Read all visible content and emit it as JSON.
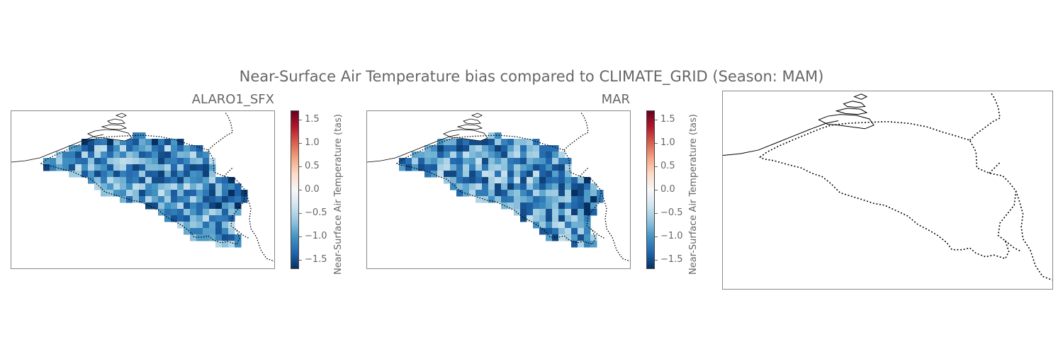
{
  "figure": {
    "title": "Near-Surface Air Temperature bias compared to CLIMATE_GRID (Season: MAM)"
  },
  "panels": [
    {
      "title": "ALARO1_SFX",
      "has_data": true,
      "seed": 7
    },
    {
      "title": "MAR",
      "has_data": true,
      "seed": 19
    },
    {
      "title": "",
      "has_data": false
    }
  ],
  "colorbar": {
    "label": "Near-Surface Air Temperature (tas)",
    "vmin": -1.7,
    "vmax": 1.7,
    "ticks": [
      "1.5",
      "1.0",
      "0.5",
      "0.0",
      "−0.5",
      "−1.0",
      "−1.5"
    ],
    "tick_values": [
      1.5,
      1.0,
      0.5,
      0.0,
      -0.5,
      -1.0,
      -1.5
    ],
    "colormap": [
      "#053061",
      "#2166ac",
      "#4393c3",
      "#92c5de",
      "#d1e5f0",
      "#f7f7f7",
      "#fddbc7",
      "#f4a582",
      "#d6604d",
      "#b2182b",
      "#67001f"
    ]
  },
  "chart_data": {
    "type": "heatmap",
    "title": "Near-Surface Air Temperature bias compared to CLIMATE_GRID (Season: MAM)",
    "panels": [
      "ALARO1_SFX",
      "MAR",
      ""
    ],
    "colorbar_label": "Near-Surface Air Temperature (tas)",
    "range": [
      -1.7,
      1.7
    ],
    "typical_bias_range": [
      -1.6,
      -0.4
    ]
  }
}
